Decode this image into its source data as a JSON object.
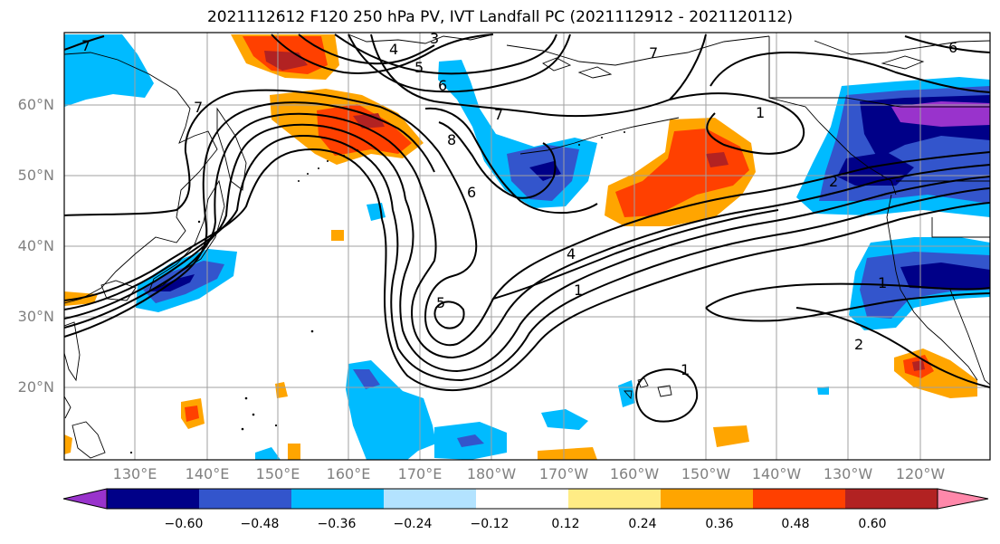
{
  "title": "2021112612 F120 250 hPa PV, IVT Landfall PC (2021112912 - 2021120112)",
  "lat_labels": [
    "60°N",
    "50°N",
    "40°N",
    "30°N",
    "20°N"
  ],
  "lon_labels": [
    "130°E",
    "140°E",
    "150°E",
    "160°E",
    "170°E",
    "180°W",
    "170°W",
    "160°W",
    "150°W",
    "140°W",
    "130°W",
    "120°W"
  ],
  "colorbar": {
    "colors": [
      "#9933cc",
      "#000088",
      "#3355cc",
      "#00bbff",
      "#b3e3ff",
      "#ffffff",
      "#ffec85",
      "#ffa500",
      "#ff4000",
      "#b22222",
      "#ff88aa"
    ],
    "tick_labels": [
      "−0.60",
      "−0.48",
      "−0.36",
      "−0.24",
      "−0.12",
      "0.12",
      "0.24",
      "0.36",
      "0.48",
      "0.60"
    ]
  },
  "contour_labels": {
    "tr_7": "7",
    "nw_3": "3",
    "nw_4": "4",
    "nw_5": "5",
    "nw_6": "6",
    "nw_7": "7",
    "nc_8": "8",
    "nc_6": "6",
    "ne_7": "7",
    "ne_6": "6",
    "w_7": "7",
    "w_1": "1",
    "c_5": "5",
    "c_4": "4",
    "c_1": "1",
    "e_1": "1",
    "e_2": "2",
    "e_2b": "2",
    "hi_1": "1"
  }
}
